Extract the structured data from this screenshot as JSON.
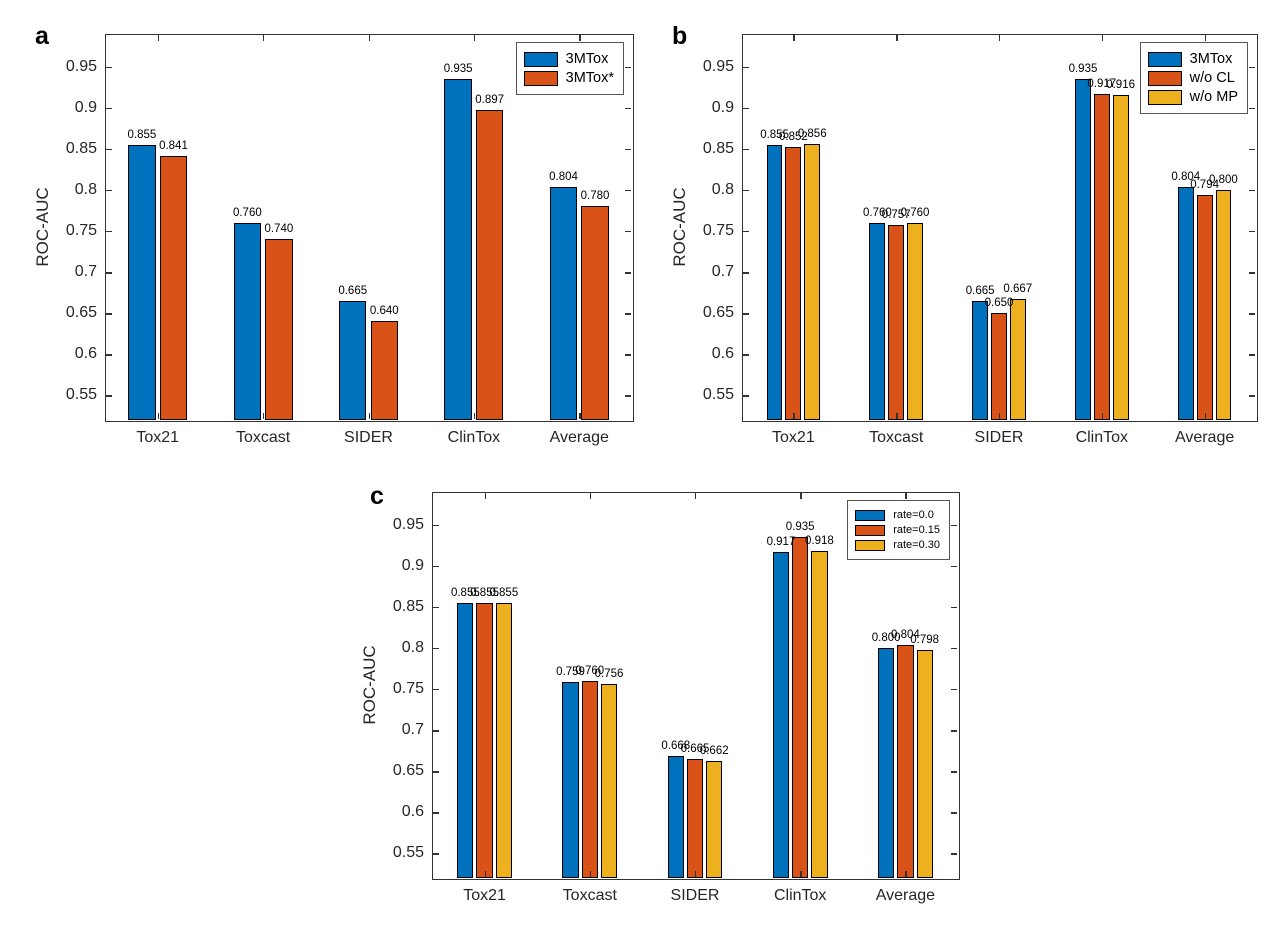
{
  "figure": {
    "background_color": "#ffffff",
    "axis_color": "#333333",
    "tick_label_color": "#262626"
  },
  "chart_data": [
    {
      "type": "bar",
      "panel_label": "a",
      "ylabel": "ROC-AUC",
      "categories": [
        "Tox21",
        "Toxcast",
        "SIDER",
        "ClinTox",
        "Average"
      ],
      "series": [
        {
          "name": "3MTox",
          "color": "#0072BD",
          "values": [
            0.855,
            0.76,
            0.665,
            0.935,
            0.804
          ]
        },
        {
          "name": "3MTox*",
          "color": "#D95319",
          "values": [
            0.841,
            0.74,
            0.64,
            0.897,
            0.78
          ]
        }
      ],
      "ylim": [
        0.52,
        0.99
      ],
      "yticks": [
        0.55,
        0.6,
        0.65,
        0.7,
        0.75,
        0.8,
        0.85,
        0.9,
        0.95
      ],
      "ytick_labels": [
        "0.55",
        "0.6",
        "0.65",
        "0.7",
        "0.75",
        "0.8",
        "0.85",
        "0.9",
        "0.95"
      ],
      "legend_position": "top-right",
      "value_label_decimals": 3,
      "grid": false
    },
    {
      "type": "bar",
      "panel_label": "b",
      "ylabel": "ROC-AUC",
      "categories": [
        "Tox21",
        "Toxcast",
        "SIDER",
        "ClinTox",
        "Average"
      ],
      "series": [
        {
          "name": "3MTox",
          "color": "#0072BD",
          "values": [
            0.855,
            0.76,
            0.665,
            0.935,
            0.804
          ]
        },
        {
          "name": "w/o CL",
          "color": "#D95319",
          "values": [
            0.852,
            0.757,
            0.65,
            0.917,
            0.794
          ]
        },
        {
          "name": "w/o MP",
          "color": "#EDB120",
          "values": [
            0.856,
            0.76,
            0.667,
            0.916,
            0.8
          ]
        }
      ],
      "ylim": [
        0.52,
        0.99
      ],
      "yticks": [
        0.55,
        0.6,
        0.65,
        0.7,
        0.75,
        0.8,
        0.85,
        0.9,
        0.95
      ],
      "ytick_labels": [
        "0.55",
        "0.6",
        "0.65",
        "0.7",
        "0.75",
        "0.8",
        "0.85",
        "0.9",
        "0.95"
      ],
      "legend_position": "top-right",
      "value_label_decimals": 3,
      "grid": false
    },
    {
      "type": "bar",
      "panel_label": "c",
      "ylabel": "ROC-AUC",
      "categories": [
        "Tox21",
        "Toxcast",
        "SIDER",
        "ClinTox",
        "Average"
      ],
      "series": [
        {
          "name": "rate=0.0",
          "color": "#0072BD",
          "values": [
            0.855,
            0.759,
            0.668,
            0.917,
            0.8
          ]
        },
        {
          "name": "rate=0.15",
          "color": "#D95319",
          "values": [
            0.855,
            0.76,
            0.665,
            0.935,
            0.804
          ]
        },
        {
          "name": "rate=0.30",
          "color": "#EDB120",
          "values": [
            0.855,
            0.756,
            0.662,
            0.918,
            0.798
          ]
        }
      ],
      "ylim": [
        0.52,
        0.99
      ],
      "yticks": [
        0.55,
        0.6,
        0.65,
        0.7,
        0.75,
        0.8,
        0.85,
        0.9,
        0.95
      ],
      "ytick_labels": [
        "0.55",
        "0.6",
        "0.65",
        "0.7",
        "0.75",
        "0.8",
        "0.85",
        "0.9",
        "0.95"
      ],
      "legend_position": "top-right",
      "value_label_decimals": 3,
      "grid": false
    }
  ]
}
